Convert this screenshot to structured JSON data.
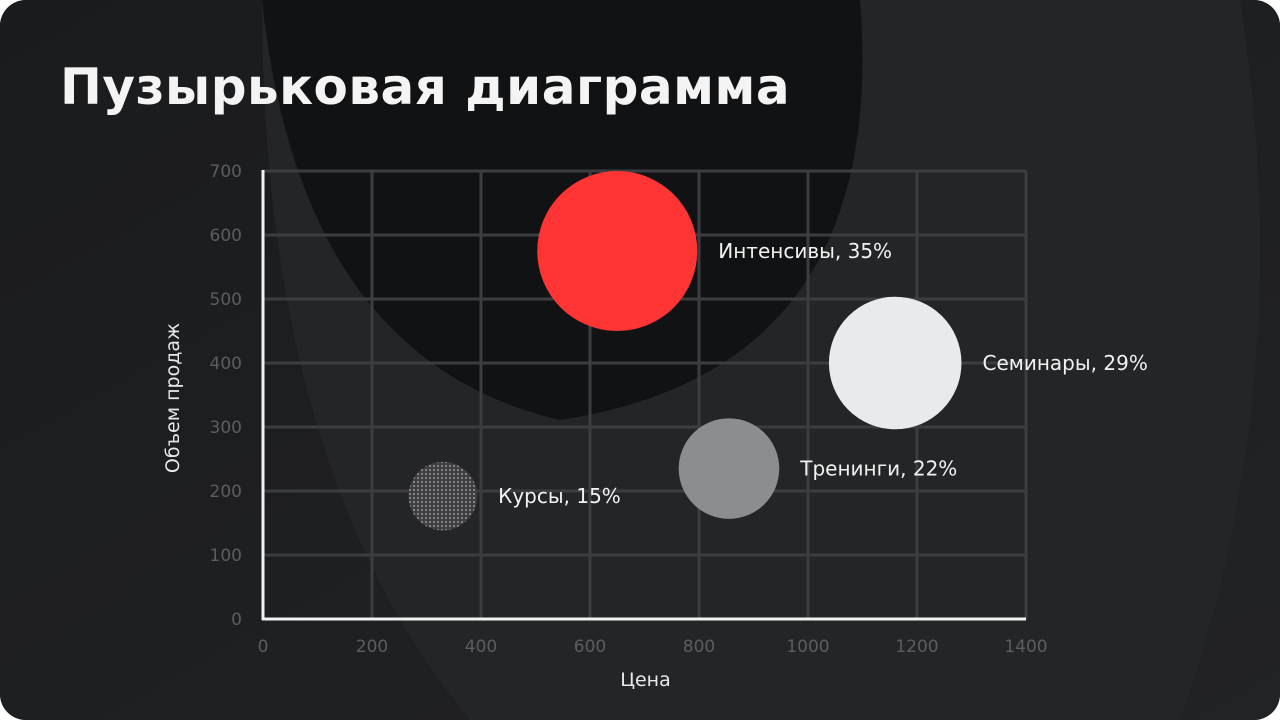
{
  "slide": {
    "title": "Пузырьковая диаграмма"
  },
  "colors": {
    "background": "#1c1d1f",
    "grid": "#3c3d40",
    "axis": "#f2f2f2",
    "accent_red": "#ff3535",
    "light_gray": "#e8eaec",
    "mid_gray": "#8b8d8f",
    "dark_gray": "#5a5a5c"
  },
  "chart_data": {
    "type": "scatter",
    "subtype": "bubble",
    "title": "Пузырьковая диаграмма",
    "xlabel": "Цена",
    "ylabel": "Объем продаж",
    "xlim": [
      0,
      1400
    ],
    "ylim": [
      0,
      700
    ],
    "x_ticks": [
      0,
      200,
      400,
      600,
      800,
      1000,
      1200,
      1400
    ],
    "y_ticks": [
      0,
      100,
      200,
      300,
      400,
      500,
      600,
      700
    ],
    "grid": true,
    "series": [
      {
        "name": "Интенсивы",
        "label": "Интенсивы, 35%",
        "x": 650,
        "y": 575,
        "share": 35,
        "color": "#ff3535",
        "pattern": "solid"
      },
      {
        "name": "Семинары",
        "label": "Семинары, 29%",
        "x": 1160,
        "y": 400,
        "share": 29,
        "color": "#e8eaec",
        "pattern": "solid"
      },
      {
        "name": "Тренинги",
        "label": "Тренинги, 22%",
        "x": 855,
        "y": 235,
        "share": 22,
        "color": "#8b8d8f",
        "pattern": "solid"
      },
      {
        "name": "Курсы",
        "label": "Курсы, 15%",
        "x": 330,
        "y": 192,
        "share": 15,
        "color": "#5a5a5c",
        "pattern": "dotted"
      }
    ]
  }
}
